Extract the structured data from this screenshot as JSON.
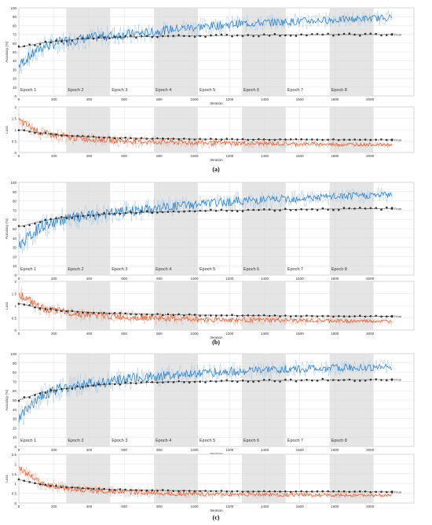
{
  "panels": [
    {
      "caption": "(a)",
      "accuracy_final": [
        55,
        60,
        63,
        65,
        66,
        67,
        67.5,
        68,
        68.2,
        68.5,
        68.8,
        69,
        69.2,
        69.4,
        69.5,
        69.6,
        69.7,
        69.8
      ],
      "loss_final": [
        1.0,
        0.85,
        0.75,
        0.7,
        0.66,
        0.63,
        0.61,
        0.6,
        0.59,
        0.58,
        0.575,
        0.57,
        0.565,
        0.56,
        0.558,
        0.556,
        0.555,
        0.554
      ]
    },
    {
      "caption": "(b)",
      "accuracy_final": [
        52,
        58,
        62,
        64,
        66,
        67,
        68,
        68.5,
        69,
        69.5,
        70,
        70.3,
        70.6,
        71,
        71.2,
        71.4,
        71.6,
        71.8
      ],
      "loss_final": [
        1.1,
        0.9,
        0.8,
        0.74,
        0.7,
        0.67,
        0.65,
        0.63,
        0.62,
        0.61,
        0.6,
        0.59,
        0.585,
        0.58,
        0.575,
        0.57,
        0.567,
        0.565
      ]
    },
    {
      "caption": "(c)",
      "accuracy_final": [
        50,
        58,
        62,
        65,
        67,
        68,
        69,
        69.6,
        70,
        70.4,
        70.7,
        71,
        71.2,
        71.4,
        71.6,
        71.8,
        71.9,
        72
      ],
      "loss_final": [
        1.2,
        0.95,
        0.82,
        0.75,
        0.7,
        0.67,
        0.65,
        0.63,
        0.62,
        0.61,
        0.6,
        0.59,
        0.585,
        0.58,
        0.578,
        0.575,
        0.572,
        0.57
      ]
    }
  ],
  "chart_data": [
    {
      "type": "line",
      "panel": "(a)",
      "x": [
        0,
        125,
        250,
        375,
        500,
        625,
        750,
        875,
        1000,
        1125,
        1250,
        1375,
        1500,
        1625,
        1750,
        1875,
        2000,
        2125
      ],
      "xlabel": "Iteration",
      "ylabel": "Accuracy (%)",
      "xlim": [
        0,
        2250
      ],
      "ylim": [
        0,
        100
      ],
      "epochs": [
        "Epoch 1",
        "Epoch 2",
        "Epoch 3",
        "Epoch 4",
        "Epoch 5",
        "Epoch 6",
        "Epoch 7",
        "Epoch 8"
      ],
      "final_label": "Final",
      "series": [
        {
          "values": [
            35,
            55,
            62,
            65,
            68,
            70,
            72,
            76,
            78,
            80,
            82,
            83,
            84,
            85,
            86,
            87,
            88,
            89
          ]
        },
        {
          "values": [
            55,
            60,
            63,
            65,
            66,
            67,
            67.5,
            68,
            68.2,
            68.5,
            68.8,
            69,
            69.2,
            69.4,
            69.5,
            69.6,
            69.7,
            69.8
          ]
        }
      ]
    },
    {
      "type": "line",
      "panel": "(a)",
      "x": [
        0,
        125,
        250,
        375,
        500,
        625,
        750,
        875,
        1000,
        1125,
        1250,
        1375,
        1500,
        1625,
        1750,
        1875,
        2000,
        2125
      ],
      "xlabel": "Iteration",
      "ylabel": "Loss",
      "xlim": [
        0,
        2250
      ],
      "ylim": [
        0,
        2.0
      ],
      "final_label": "Final",
      "series": [
        {
          "values": [
            1.4,
            0.85,
            0.7,
            0.6,
            0.55,
            0.5,
            0.47,
            0.45,
            0.43,
            0.41,
            0.4,
            0.39,
            0.38,
            0.37,
            0.36,
            0.35,
            0.35,
            0.34
          ]
        },
        {
          "values": [
            1.0,
            0.85,
            0.75,
            0.7,
            0.66,
            0.63,
            0.61,
            0.6,
            0.59,
            0.58,
            0.575,
            0.57,
            0.565,
            0.56,
            0.558,
            0.556,
            0.555,
            0.554
          ]
        }
      ]
    },
    {
      "type": "line",
      "panel": "(b)",
      "x": [
        0,
        125,
        250,
        375,
        500,
        625,
        750,
        875,
        1000,
        1125,
        1250,
        1375,
        1500,
        1625,
        1750,
        1875,
        2000,
        2125
      ],
      "xlabel": "Iteration",
      "ylabel": "Accuracy (%)",
      "xlim": [
        0,
        2250
      ],
      "ylim": [
        0,
        100
      ],
      "epochs": [
        "Epoch 1",
        "Epoch 2",
        "Epoch 3",
        "Epoch 4",
        "Epoch 5",
        "Epoch 6",
        "Epoch 7",
        "Epoch 8"
      ],
      "final_label": "Final",
      "series": [
        {
          "values": [
            32,
            52,
            60,
            63,
            66,
            69,
            71,
            74,
            76,
            78,
            80,
            81,
            82,
            83,
            84,
            85,
            86,
            87
          ]
        },
        {
          "values": [
            52,
            58,
            62,
            64,
            66,
            67,
            68,
            68.5,
            69,
            69.5,
            70,
            70.3,
            70.6,
            71,
            71.2,
            71.4,
            71.6,
            71.8
          ]
        }
      ]
    },
    {
      "type": "line",
      "panel": "(b)",
      "x": [
        0,
        125,
        250,
        375,
        500,
        625,
        750,
        875,
        1000,
        1125,
        1250,
        1375,
        1500,
        1625,
        1750,
        1875,
        2000,
        2125
      ],
      "xlabel": "Iteration",
      "ylabel": "Loss",
      "xlim": [
        0,
        2250
      ],
      "ylim": [
        0,
        2.0
      ],
      "final_label": "Final",
      "series": [
        {
          "values": [
            1.5,
            0.9,
            0.75,
            0.65,
            0.58,
            0.53,
            0.5,
            0.47,
            0.45,
            0.43,
            0.42,
            0.41,
            0.4,
            0.39,
            0.38,
            0.37,
            0.37,
            0.36
          ]
        },
        {
          "values": [
            1.1,
            0.9,
            0.8,
            0.74,
            0.7,
            0.67,
            0.65,
            0.63,
            0.62,
            0.61,
            0.6,
            0.59,
            0.585,
            0.58,
            0.575,
            0.57,
            0.567,
            0.565
          ]
        }
      ]
    },
    {
      "type": "line",
      "panel": "(c)",
      "x": [
        0,
        125,
        250,
        375,
        500,
        625,
        750,
        875,
        1000,
        1125,
        1250,
        1375,
        1500,
        1625,
        1750,
        1875,
        2000,
        2125
      ],
      "xlabel": "Iteration",
      "ylabel": "Accuracy (%)",
      "xlim": [
        0,
        2250
      ],
      "ylim": [
        0,
        100
      ],
      "epochs": [
        "Epoch 1",
        "Epoch 2",
        "Epoch 3",
        "Epoch 4",
        "Epoch 5",
        "Epoch 6",
        "Epoch 7",
        "Epoch 8"
      ],
      "final_label": "Final",
      "series": [
        {
          "values": [
            30,
            55,
            63,
            67,
            70,
            73,
            75,
            77,
            79,
            80,
            81,
            82,
            83,
            84,
            84,
            85,
            85,
            86
          ]
        },
        {
          "values": [
            50,
            58,
            62,
            65,
            67,
            68,
            69,
            69.6,
            70,
            70.4,
            70.7,
            71,
            71.2,
            71.4,
            71.6,
            71.8,
            71.9,
            72
          ]
        }
      ]
    },
    {
      "type": "line",
      "panel": "(c)",
      "x": [
        0,
        125,
        250,
        375,
        500,
        625,
        750,
        875,
        1000,
        1125,
        1250,
        1375,
        1500,
        1625,
        1750,
        1875,
        2000,
        2125
      ],
      "xlabel": "Iteration",
      "ylabel": "Loss",
      "xlim": [
        0,
        2250
      ],
      "ylim": [
        0,
        2.5
      ],
      "final_label": "Final",
      "series": [
        {
          "values": [
            1.8,
            1.0,
            0.8,
            0.68,
            0.6,
            0.55,
            0.52,
            0.49,
            0.47,
            0.45,
            0.44,
            0.43,
            0.42,
            0.41,
            0.4,
            0.4,
            0.39,
            0.39
          ]
        },
        {
          "values": [
            1.2,
            0.95,
            0.82,
            0.75,
            0.7,
            0.67,
            0.65,
            0.63,
            0.62,
            0.61,
            0.6,
            0.59,
            0.585,
            0.58,
            0.578,
            0.575,
            0.572,
            0.57
          ]
        }
      ]
    }
  ],
  "colors": {
    "accuracy_raw": "#a9cce8",
    "accuracy_smooth": "#1f77c9",
    "loss_raw": "#f4b29a",
    "loss_smooth": "#e0562b",
    "final_marker": "#333333",
    "epoch_shade": "#e5e5e5",
    "grid": "#d8d8d8"
  }
}
